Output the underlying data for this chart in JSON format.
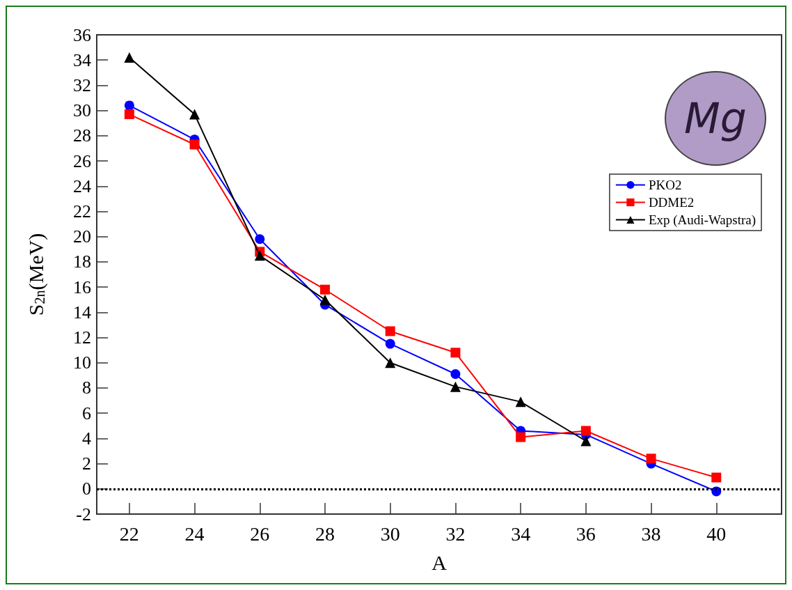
{
  "chart_data": {
    "type": "line",
    "xlabel": "A",
    "ylabel": "S$_{2n}$(MeV)",
    "x": [
      22,
      24,
      26,
      28,
      30,
      32,
      34,
      36,
      38,
      40
    ],
    "series": [
      {
        "name": "PKO2",
        "color": "#0000ff",
        "marker": "circle",
        "values": [
          30.4,
          27.7,
          19.8,
          14.6,
          11.5,
          9.1,
          4.6,
          4.3,
          2.0,
          -0.2
        ]
      },
      {
        "name": "DDME2",
        "color": "#ff0000",
        "marker": "square",
        "values": [
          29.7,
          27.3,
          18.8,
          15.8,
          12.5,
          10.8,
          4.1,
          4.6,
          2.4,
          0.9
        ]
      },
      {
        "name": "Exp (Audi-Wapstra)",
        "color": "#000000",
        "marker": "triangle",
        "values": [
          34.2,
          29.7,
          18.5,
          15.0,
          10.0,
          8.1,
          6.9,
          3.8,
          null,
          null
        ]
      }
    ],
    "xlim": [
      21,
      42
    ],
    "xticks": [
      22,
      24,
      26,
      28,
      30,
      32,
      34,
      36,
      38,
      40
    ],
    "ylim": [
      -2,
      36
    ],
    "yticks": [
      -2,
      0,
      2,
      4,
      6,
      8,
      10,
      12,
      14,
      16,
      18,
      20,
      22,
      24,
      26,
      28,
      30,
      32,
      34,
      36
    ],
    "ref_lines": [
      {
        "axis": "y",
        "value": 0,
        "color": "#000000",
        "line_style": "dotted"
      }
    ],
    "annotations": [
      "Mg"
    ],
    "legend": "top right",
    "grid": false,
    "line_style": "solid"
  }
}
